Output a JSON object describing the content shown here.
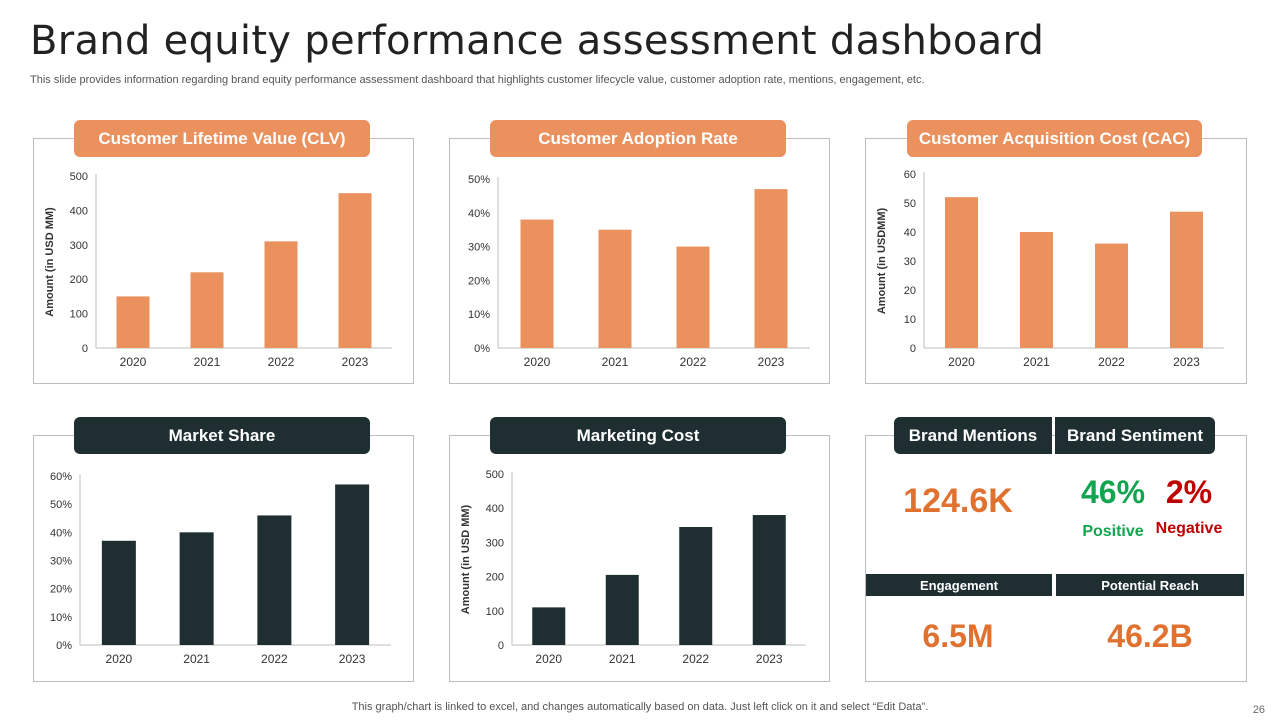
{
  "page": {
    "title": "Brand equity performance assessment dashboard",
    "subtitle": "This slide provides information regarding brand equity performance assessment dashboard that highlights customer lifecycle value, customer adoption rate, mentions, engagement, etc.",
    "footer": "This graph/chart is linked to excel,  and changes automatically based on data. Just left click on it and select “Edit Data”.",
    "page_number": "26"
  },
  "colors": {
    "orange": "#ea915e",
    "dark": "#1e2e31",
    "green": "#12a550",
    "red": "#c00000",
    "metric_orange": "#e0712f"
  },
  "chart_data": [
    {
      "id": "clv",
      "type": "bar",
      "title": "Customer Lifetime Value (CLV)",
      "categories": [
        "2020",
        "2021",
        "2022",
        "2023"
      ],
      "values": [
        150,
        220,
        310,
        450
      ],
      "ylabel": "Amount (in USD MM)",
      "ylim": [
        0,
        500
      ],
      "yticks": [
        "0",
        "100",
        "200",
        "300",
        "400",
        "500"
      ],
      "color": "#ea915e"
    },
    {
      "id": "adoption",
      "type": "bar",
      "title": "Customer Adoption Rate",
      "categories": [
        "2020",
        "2021",
        "2022",
        "2023"
      ],
      "values": [
        38,
        35,
        30,
        47
      ],
      "ylabel": "",
      "ylim": [
        0,
        50
      ],
      "yticks": [
        "0%",
        "10%",
        "20%",
        "30%",
        "40%",
        "50%"
      ],
      "color": "#ea915e"
    },
    {
      "id": "cac",
      "type": "bar",
      "title": "Customer Acquisition Cost (CAC)",
      "categories": [
        "2020",
        "2021",
        "2022",
        "2023"
      ],
      "values": [
        52,
        40,
        36,
        47
      ],
      "ylabel": "Amount (in USDMM)",
      "ylim": [
        0,
        60
      ],
      "yticks": [
        "0",
        "10",
        "20",
        "30",
        "40",
        "50",
        "60"
      ],
      "color": "#ea915e"
    },
    {
      "id": "market",
      "type": "bar",
      "title": "Market Share",
      "categories": [
        "2020",
        "2021",
        "2022",
        "2023"
      ],
      "values": [
        37,
        40,
        46,
        57
      ],
      "ylabel": "",
      "ylim": [
        0,
        60
      ],
      "yticks": [
        "0%",
        "10%",
        "20%",
        "30%",
        "40%",
        "50%",
        "60%"
      ],
      "color": "#1e2e31"
    },
    {
      "id": "marketing",
      "type": "bar",
      "title": "Marketing Cost",
      "categories": [
        "2020",
        "2021",
        "2022",
        "2023"
      ],
      "values": [
        110,
        205,
        345,
        380
      ],
      "ylabel": "Amount (in USD MM)",
      "ylim": [
        0,
        500
      ],
      "yticks": [
        "0",
        "100",
        "200",
        "300",
        "400",
        "500"
      ],
      "color": "#1e2e31"
    }
  ],
  "kpis": {
    "brand_mentions_label": "Brand Mentions",
    "brand_sentiment_label": "Brand Sentiment",
    "mentions_value": "124.6K",
    "positive_value": "46%",
    "positive_label": "Positive",
    "negative_value": "2%",
    "negative_label": "Negative",
    "engagement_label": "Engagement",
    "engagement_value": "6.5M",
    "reach_label": "Potential Reach",
    "reach_value": "46.2B"
  }
}
